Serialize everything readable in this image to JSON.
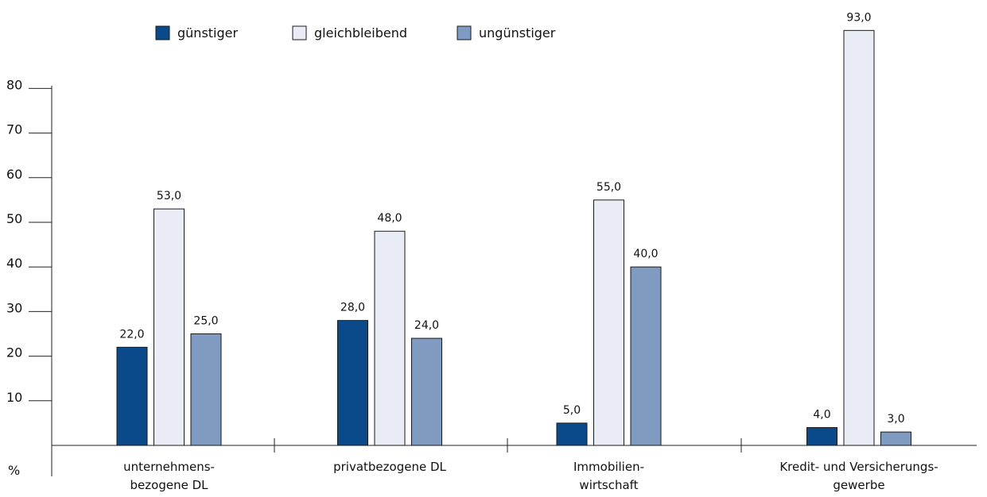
{
  "chart_data": {
    "type": "bar",
    "unit_label": "%",
    "categories": [
      [
        "unternehmens-",
        "bezogene DL"
      ],
      [
        "privatbezogene DL"
      ],
      [
        "Immobilien-",
        "wirtschaft"
      ],
      [
        "Kredit- und Versicherungs-",
        "gewerbe"
      ]
    ],
    "series": [
      {
        "name": "günstiger",
        "color": "#0b4a8a",
        "values": [
          22.0,
          28.0,
          5.0,
          4.0
        ],
        "labels": [
          "22,0",
          "28,0",
          "5,0",
          "4,0"
        ]
      },
      {
        "name": "gleichbleibend",
        "color": "#e9ebf5",
        "values": [
          53.0,
          48.0,
          55.0,
          93.0
        ],
        "labels": [
          "53,0",
          "48,0",
          "55,0",
          "93,0"
        ]
      },
      {
        "name": "ungünstiger",
        "color": "#7f9bc2",
        "values": [
          25.0,
          24.0,
          40.0,
          3.0
        ],
        "labels": [
          "25,0",
          "24,0",
          "40,0",
          "3,0"
        ]
      }
    ],
    "y_ticks": [
      10,
      20,
      30,
      40,
      50,
      60,
      70,
      80
    ],
    "ylim": [
      0,
      93
    ],
    "legend_position": "top",
    "grid": false
  }
}
